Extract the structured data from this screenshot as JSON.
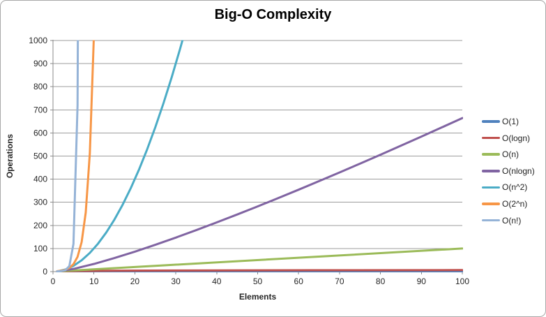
{
  "chart_data": {
    "type": "line",
    "title": "Big-O Complexity",
    "xlabel": "Elements",
    "ylabel": "Operations",
    "xlim": [
      0,
      100
    ],
    "ylim": [
      0,
      1000
    ],
    "x_ticks": [
      0,
      10,
      20,
      30,
      40,
      50,
      60,
      70,
      80,
      90,
      100
    ],
    "y_ticks": [
      0,
      100,
      200,
      300,
      400,
      500,
      600,
      700,
      800,
      900,
      1000
    ],
    "grid": "horizontal",
    "legend_position": "right",
    "series": [
      {
        "name": "O(1)",
        "color": "#4F81BD",
        "points": [
          [
            1,
            1
          ],
          [
            100,
            1
          ]
        ]
      },
      {
        "name": "O(logn)",
        "color": "#C0504D",
        "points": [
          [
            1,
            0
          ],
          [
            2,
            1
          ],
          [
            3,
            1.58
          ],
          [
            4,
            2
          ],
          [
            6,
            2.58
          ],
          [
            8,
            3
          ],
          [
            10,
            3.32
          ],
          [
            16,
            4
          ],
          [
            32,
            5
          ],
          [
            64,
            6
          ],
          [
            100,
            6.64
          ]
        ]
      },
      {
        "name": "O(n)",
        "color": "#9BBB59",
        "points": [
          [
            1,
            1
          ],
          [
            100,
            100
          ]
        ]
      },
      {
        "name": "O(nlogn)",
        "color": "#8064A2",
        "points": [
          [
            1,
            0
          ],
          [
            5,
            11.6
          ],
          [
            10,
            33.2
          ],
          [
            15,
            58.6
          ],
          [
            20,
            86.4
          ],
          [
            25,
            116.1
          ],
          [
            30,
            147.2
          ],
          [
            35,
            179.5
          ],
          [
            40,
            212.9
          ],
          [
            45,
            247.1
          ],
          [
            50,
            282.2
          ],
          [
            55,
            318.0
          ],
          [
            60,
            354.4
          ],
          [
            65,
            391.5
          ],
          [
            70,
            429.0
          ],
          [
            75,
            467.2
          ],
          [
            80,
            505.8
          ],
          [
            85,
            544.8
          ],
          [
            90,
            584.3
          ],
          [
            95,
            624.1
          ],
          [
            100,
            664.4
          ]
        ]
      },
      {
        "name": "O(n^2)",
        "color": "#4BACC6",
        "points": [
          [
            1,
            1
          ],
          [
            3,
            9
          ],
          [
            5,
            25
          ],
          [
            7,
            49
          ],
          [
            9,
            81
          ],
          [
            11,
            121
          ],
          [
            13,
            169
          ],
          [
            15,
            225
          ],
          [
            17,
            289
          ],
          [
            19,
            361
          ],
          [
            21,
            441
          ],
          [
            23,
            529
          ],
          [
            25,
            625
          ],
          [
            27,
            729
          ],
          [
            29,
            841
          ],
          [
            31,
            961
          ],
          [
            31.62,
            1000
          ]
        ]
      },
      {
        "name": "O(2^n)",
        "color": "#F79646",
        "points": [
          [
            1,
            2
          ],
          [
            2,
            4
          ],
          [
            3,
            8
          ],
          [
            4,
            16
          ],
          [
            5,
            32
          ],
          [
            6,
            64
          ],
          [
            7,
            128
          ],
          [
            8,
            256
          ],
          [
            9,
            512
          ],
          [
            9.95,
            1000
          ]
        ]
      },
      {
        "name": "O(n!)",
        "color": "#95B3D7",
        "points": [
          [
            1,
            1
          ],
          [
            2,
            2
          ],
          [
            3,
            6
          ],
          [
            4,
            24
          ],
          [
            5,
            120
          ],
          [
            6,
            720
          ],
          [
            6.07,
            1000
          ]
        ]
      }
    ]
  },
  "colors": {
    "grid": "#9c9c9c",
    "axis": "#898989",
    "tick_text": "#262626",
    "title_text": "#000000"
  }
}
